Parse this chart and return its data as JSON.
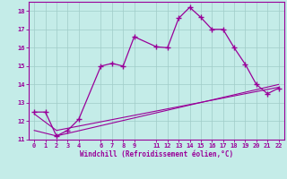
{
  "xlabel": "Windchill (Refroidissement éolien,°C)",
  "background_color": "#c4ece8",
  "grid_color": "#a0ccc8",
  "line_color": "#990099",
  "xlim": [
    -0.5,
    22.5
  ],
  "ylim": [
    11,
    18.5
  ],
  "xticks": [
    0,
    1,
    2,
    3,
    4,
    6,
    7,
    8,
    9,
    11,
    12,
    13,
    14,
    15,
    16,
    17,
    18,
    19,
    20,
    21,
    22
  ],
  "yticks": [
    11,
    12,
    13,
    14,
    15,
    16,
    17,
    18
  ],
  "curve1_x": [
    0,
    1,
    2,
    3,
    4,
    6,
    7,
    8,
    9,
    11,
    12,
    13,
    14,
    15,
    16,
    17,
    18,
    19,
    20,
    21,
    22
  ],
  "curve1_y": [
    12.5,
    12.5,
    11.2,
    11.5,
    12.1,
    15.0,
    15.15,
    15.0,
    16.6,
    16.05,
    16.0,
    17.6,
    18.2,
    17.65,
    17.0,
    17.0,
    16.0,
    15.1,
    14.0,
    13.5,
    13.8
  ],
  "curve2_x": [
    0,
    2,
    22
  ],
  "curve2_y": [
    11.5,
    11.2,
    14.0
  ],
  "curve3_x": [
    0,
    2,
    22
  ],
  "curve3_y": [
    12.4,
    11.5,
    13.85
  ]
}
